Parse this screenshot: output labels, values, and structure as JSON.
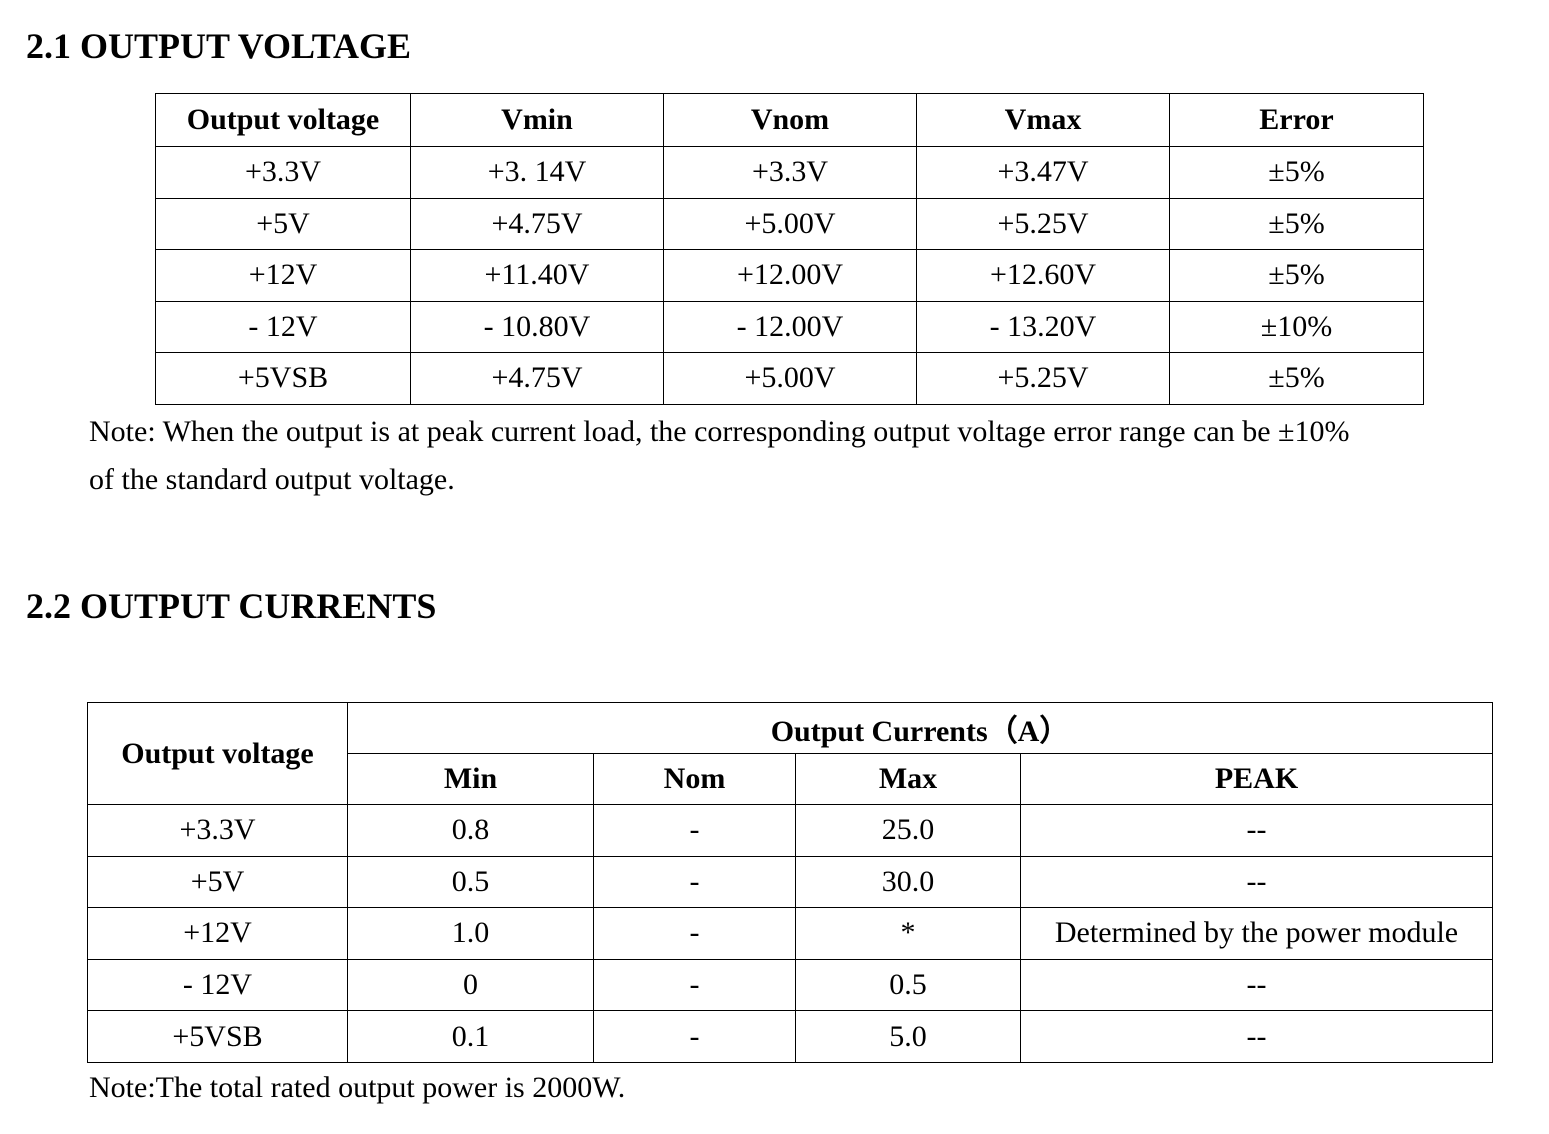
{
  "section1": {
    "title": "2.1 OUTPUT VOLTAGE",
    "table": {
      "header": [
        "Output voltage",
        "Vmin",
        "Vnom",
        "Vmax",
        "Error"
      ],
      "rows": [
        [
          "+3.3V",
          "+3. 14V",
          "+3.3V",
          "+3.47V",
          "±5%"
        ],
        [
          "+5V",
          "+4.75V",
          "+5.00V",
          "+5.25V",
          "±5%"
        ],
        [
          "+12V",
          "+11.40V",
          "+12.00V",
          "+12.60V",
          "±5%"
        ],
        [
          "- 12V",
          "- 10.80V",
          "- 12.00V",
          "- 13.20V",
          "±10%"
        ],
        [
          "+5VSB",
          "+4.75V",
          "+5.00V",
          "+5.25V",
          "±5%"
        ]
      ]
    },
    "note": {
      "lines": [
        "Note: When the output is at peak current load, the corresponding output voltage error range can be  ±10%",
        "of the standard output voltage."
      ]
    }
  },
  "section2": {
    "title": "2.2 OUTPUT CURRENTS",
    "table": {
      "corner": "Output voltage",
      "group_header": "Output Currents（A）",
      "header": [
        "Min",
        "Nom",
        "Max",
        "PEAK"
      ],
      "rows": [
        [
          "+3.3V",
          "0.8",
          "-",
          "25.0",
          "--"
        ],
        [
          "+5V",
          "0.5",
          "-",
          "30.0",
          "--"
        ],
        [
          "+12V",
          "1.0",
          "-",
          "*",
          "Determined by the power module"
        ],
        [
          "- 12V",
          "0",
          "-",
          "0.5",
          "--"
        ],
        [
          "+5VSB",
          "0.1",
          "-",
          "5.0",
          "--"
        ]
      ]
    },
    "note": "Note:The total rated output power is 2000W."
  }
}
